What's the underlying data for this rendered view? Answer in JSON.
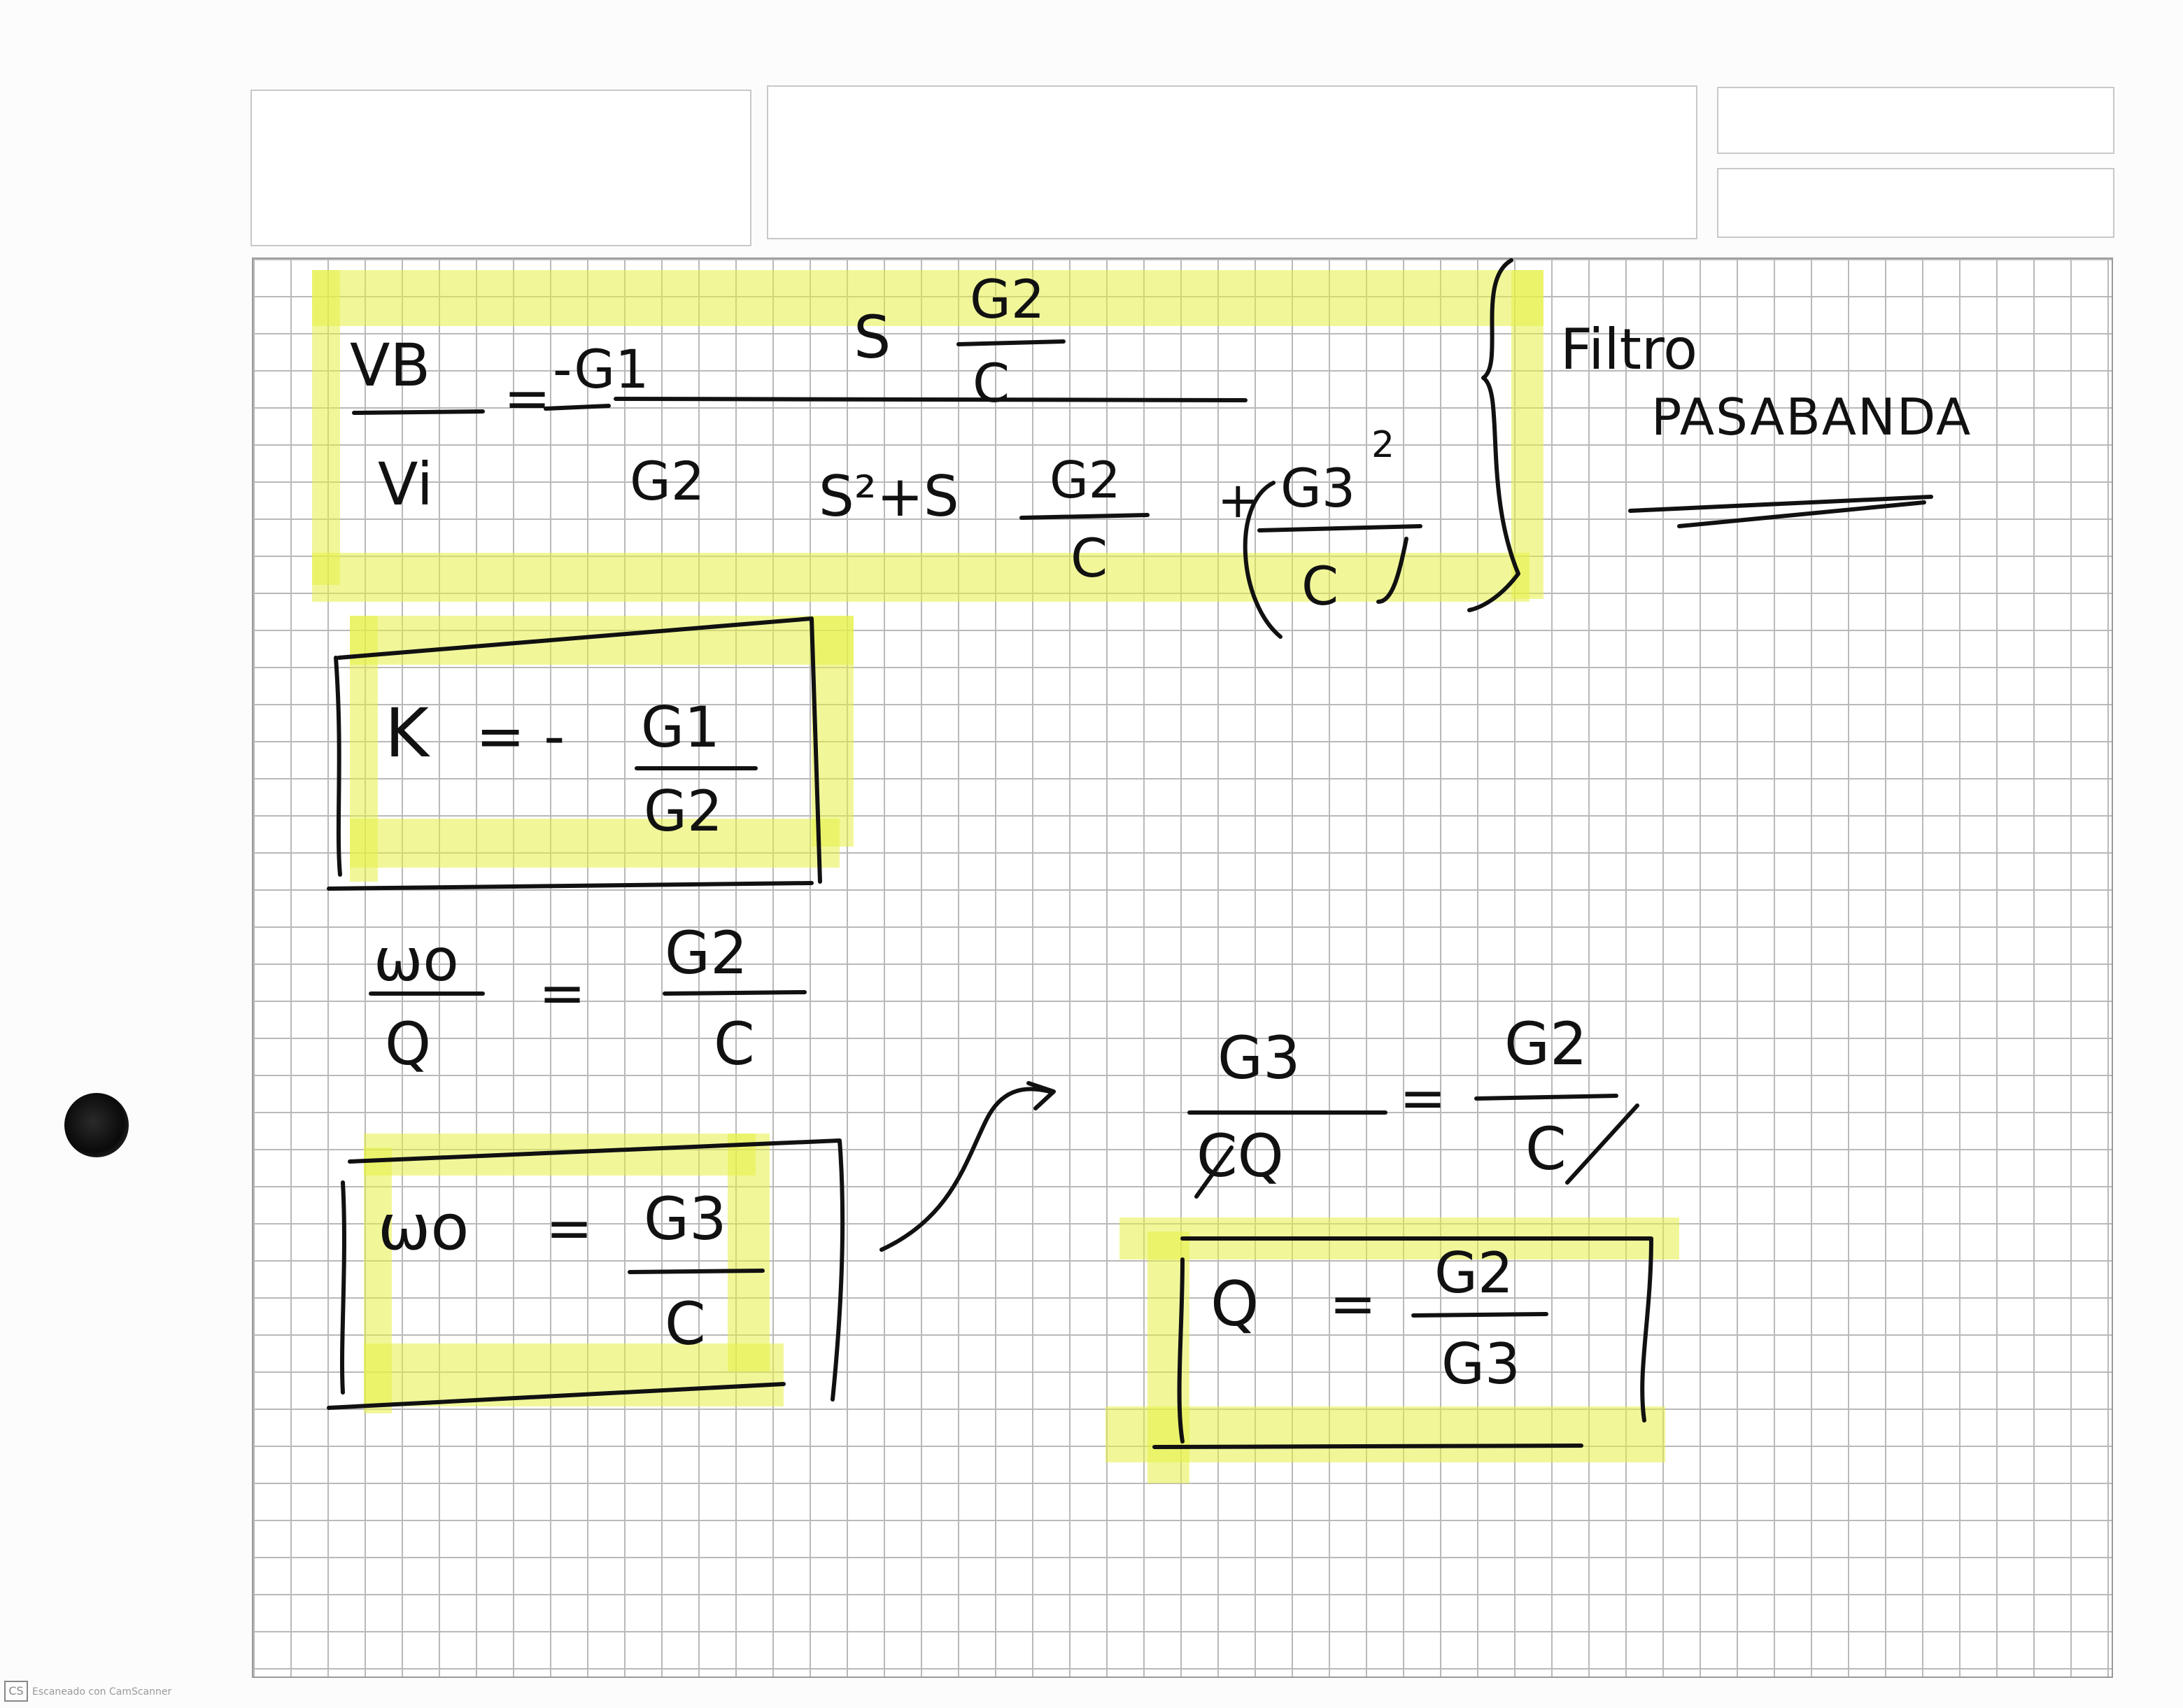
{
  "notes": {
    "transfer_function": {
      "lhs_numerator": "VB",
      "lhs_denominator": "Vi",
      "equals": "=",
      "gain_numerator": "-G1",
      "gain_denominator": "G2",
      "num_s": "S",
      "num_frac_top": "G2",
      "num_frac_bottom": "C",
      "den_s2": "S²+S",
      "den_frac1_top": "G2",
      "den_frac1_bottom": "C",
      "den_plus": "+",
      "den_frac2_top": "G3",
      "den_frac2_bottom": "C",
      "den_frac2_exp": "2"
    },
    "filter_label_1": "Filtro",
    "filter_label_2": "PASABANDA",
    "k_equation": {
      "lhs": "K",
      "equals": "= -",
      "top": "G1",
      "bottom": "G2"
    },
    "wo_q_equation": {
      "lhs_top": "ωo",
      "lhs_bottom": "Q",
      "equals": "=",
      "rhs_top": "G2",
      "rhs_bottom": "C"
    },
    "wo_equation": {
      "lhs": "ωo",
      "equals": "=",
      "top": "G3",
      "bottom": "C"
    },
    "substitution": {
      "lhs_top": "G3",
      "lhs_bottom": "CQ",
      "equals": "=",
      "rhs_top": "G2",
      "rhs_bottom": "C"
    },
    "q_equation": {
      "lhs": "Q",
      "equals": "=",
      "top": "G2",
      "bottom": "G3"
    }
  },
  "footer": {
    "scanner_icon": "CS",
    "scanner_text": "Escaneado con CamScanner"
  },
  "colors": {
    "ink": "#111111",
    "highlight": "#e6f046",
    "grid": "#b9b9b9"
  }
}
